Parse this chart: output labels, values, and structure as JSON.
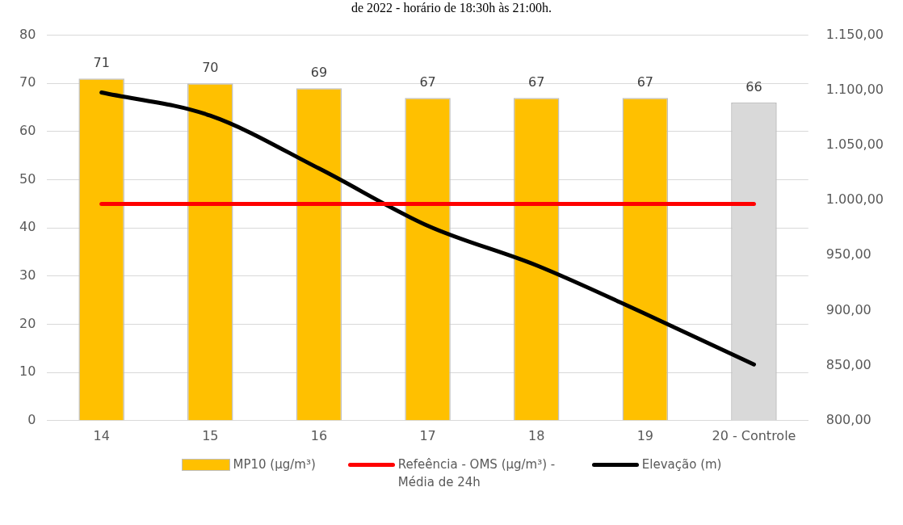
{
  "chart_data": {
    "type": "bar",
    "title": "de 2022 - horário de 18:30h às 21:00h.",
    "categories": [
      "14",
      "15",
      "16",
      "17",
      "18",
      "19",
      "20 - Controle"
    ],
    "series": [
      {
        "name": "MP10 (µg/m³)",
        "colors": [
          "#ffc000",
          "#ffc000",
          "#ffc000",
          "#ffc000",
          "#ffc000",
          "#ffc000",
          "#d9d9d9"
        ],
        "color": "#ffc000",
        "values": [
          71,
          70,
          69,
          67,
          67,
          67,
          66
        ],
        "value_labels": [
          "71",
          "70",
          "69",
          "67",
          "67",
          "67",
          "66"
        ]
      },
      {
        "name": "Refeência - OMS (µg/m³) - Média de 24h",
        "type": "line",
        "color": "#ff0000",
        "values": [
          45,
          45,
          45,
          45,
          45,
          45,
          45
        ]
      },
      {
        "name": "Elevação (m)",
        "type": "line",
        "axis": "y2",
        "color": "#000000",
        "values": [
          1098,
          1077,
          1029,
          977,
          941,
          897,
          851
        ]
      }
    ],
    "ylim": [
      0,
      80
    ],
    "yticks": [
      0,
      10,
      20,
      30,
      40,
      50,
      60,
      70,
      80
    ],
    "y2lim": [
      800,
      1150
    ],
    "y2ticks": [
      {
        "value": 800,
        "label": "800,00"
      },
      {
        "value": 850,
        "label": "850,00"
      },
      {
        "value": 900,
        "label": "900,00"
      },
      {
        "value": 950,
        "label": "950,00"
      },
      {
        "value": 1000,
        "label": "1.000,00"
      },
      {
        "value": 1050,
        "label": "1.050,00"
      },
      {
        "value": 1100,
        "label": "1.100,00"
      },
      {
        "value": 1150,
        "label": "1.150,00"
      }
    ],
    "grid": "y",
    "legend": "bottom",
    "marker": "none",
    "line_style": "solid"
  }
}
